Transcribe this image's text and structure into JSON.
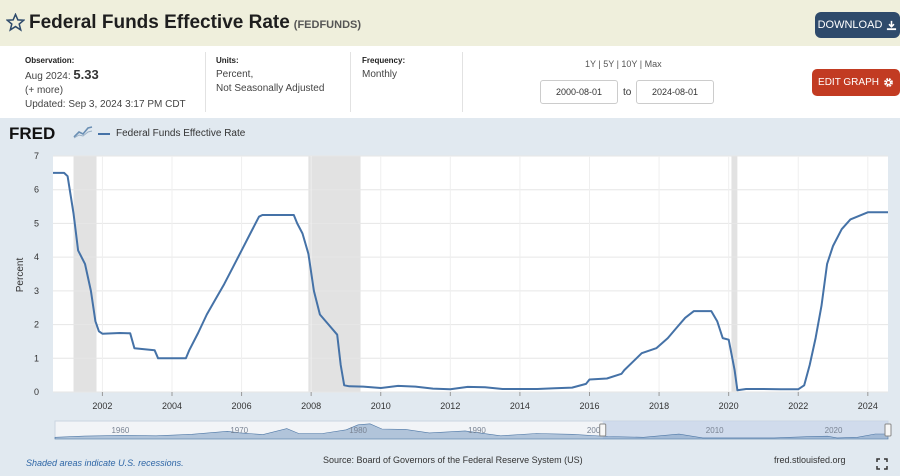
{
  "header": {
    "title": "Federal Funds Effective Rate",
    "series_code": "(FEDFUNDS)",
    "download_label": "DOWNLOAD"
  },
  "meta": {
    "observation_label": "Observation:",
    "observation_date": "Aug 2024:",
    "observation_value": "5.33",
    "more": "(+ more)",
    "updated": "Updated: Sep 3, 2024 3:17 PM CDT",
    "units_label": "Units:",
    "units_line1": "Percent,",
    "units_line2": "Not Seasonally Adjusted",
    "frequency_label": "Frequency:",
    "frequency_value": "Monthly"
  },
  "range_controls": {
    "options": [
      "1Y",
      "5Y",
      "10Y",
      "Max"
    ],
    "start_date": "2000-08-01",
    "to_label": "to",
    "end_date": "2024-08-01",
    "edit_graph_label": "EDIT GRAPH"
  },
  "logo": "FRED",
  "footer": {
    "recession_note": "Shaded areas indicate U.S. recessions.",
    "source": "Source: Board of Governors of the Federal Reserve System (US)",
    "url": "fred.stlouisfed.org"
  },
  "colors": {
    "line": "#4572a7",
    "recession": "#e2e2e2",
    "download_button": "#2e4a6b",
    "edit_button": "#c23b22"
  },
  "chart_data": {
    "type": "line",
    "title": "",
    "xlabel": "",
    "ylabel": "Percent",
    "xlim": [
      2000.58,
      2024.58
    ],
    "ylim": [
      0,
      7
    ],
    "y_ticks": [
      0,
      1,
      2,
      3,
      4,
      5,
      6,
      7
    ],
    "x_ticks": [
      2002,
      2004,
      2006,
      2008,
      2010,
      2012,
      2014,
      2016,
      2018,
      2020,
      2022,
      2024
    ],
    "legend": [
      {
        "name": "Federal Funds Effective Rate"
      }
    ],
    "recessions": [
      [
        2001.17,
        2001.83
      ],
      [
        2007.92,
        2009.42
      ],
      [
        2020.08,
        2020.25
      ]
    ],
    "series": [
      {
        "name": "Federal Funds Effective Rate",
        "x": [
          2000.58,
          2000.9,
          2001.0,
          2001.17,
          2001.3,
          2001.5,
          2001.67,
          2001.8,
          2001.9,
          2002.0,
          2002.5,
          2002.8,
          2002.92,
          2003.5,
          2003.6,
          2004.0,
          2004.4,
          2004.5,
          2004.75,
          2005.0,
          2005.25,
          2005.5,
          2005.75,
          2006.0,
          2006.25,
          2006.5,
          2006.6,
          2007.0,
          2007.5,
          2007.6,
          2007.75,
          2007.92,
          2008.08,
          2008.25,
          2008.5,
          2008.75,
          2008.85,
          2008.95,
          2009.1,
          2009.5,
          2010.0,
          2010.5,
          2011.0,
          2011.5,
          2012.0,
          2012.5,
          2013.0,
          2013.5,
          2014.0,
          2014.5,
          2015.0,
          2015.5,
          2015.9,
          2016.0,
          2016.5,
          2016.92,
          2017.0,
          2017.25,
          2017.5,
          2017.92,
          2018.25,
          2018.5,
          2018.75,
          2019.0,
          2019.5,
          2019.67,
          2019.83,
          2020.0,
          2020.17,
          2020.25,
          2020.5,
          2021.0,
          2021.5,
          2022.0,
          2022.17,
          2022.33,
          2022.5,
          2022.67,
          2022.83,
          2023.0,
          2023.25,
          2023.5,
          2024.0,
          2024.58
        ],
        "values": [
          6.5,
          6.5,
          6.4,
          5.3,
          4.2,
          3.8,
          3.0,
          2.1,
          1.8,
          1.73,
          1.75,
          1.74,
          1.3,
          1.24,
          1.0,
          1.0,
          1.0,
          1.25,
          1.75,
          2.3,
          2.75,
          3.2,
          3.7,
          4.2,
          4.7,
          5.2,
          5.25,
          5.25,
          5.25,
          5.0,
          4.7,
          4.1,
          3.0,
          2.3,
          2.0,
          1.7,
          0.8,
          0.2,
          0.17,
          0.16,
          0.12,
          0.18,
          0.16,
          0.1,
          0.08,
          0.15,
          0.14,
          0.09,
          0.09,
          0.09,
          0.11,
          0.13,
          0.24,
          0.37,
          0.4,
          0.54,
          0.65,
          0.9,
          1.15,
          1.3,
          1.6,
          1.9,
          2.2,
          2.4,
          2.4,
          2.1,
          1.6,
          1.55,
          0.65,
          0.05,
          0.09,
          0.09,
          0.08,
          0.08,
          0.2,
          0.8,
          1.6,
          2.56,
          3.8,
          4.33,
          4.83,
          5.12,
          5.33,
          5.33
        ]
      }
    ],
    "overview": {
      "x_ticks": [
        1960,
        1970,
        1980,
        1990,
        2000,
        2010,
        2020
      ],
      "xlim": [
        1954.5,
        2024.58
      ]
    }
  }
}
